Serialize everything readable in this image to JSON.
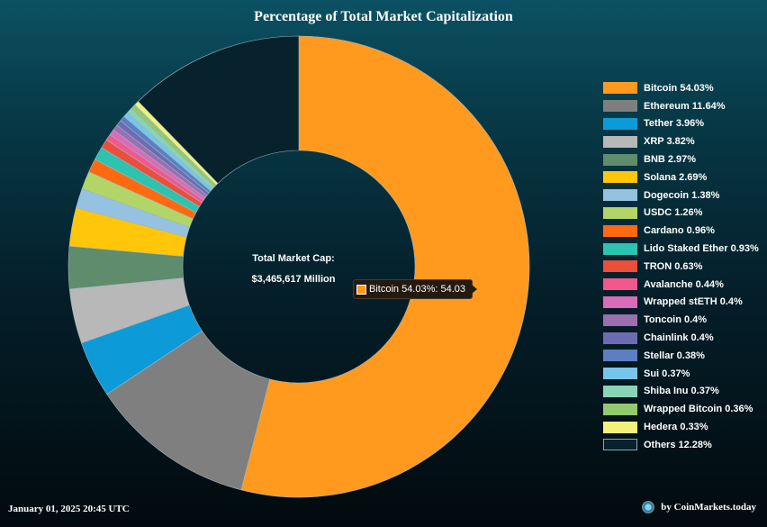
{
  "chart_data": {
    "type": "pie",
    "title": "Percentage of Total Market Capitalization",
    "center_label": {
      "line1": "Total Market Cap:",
      "line2": "$3,465,617 Million"
    },
    "slices": [
      {
        "label": "Bitcoin 54.03%",
        "value": 54.03,
        "color": "#ff9a1f"
      },
      {
        "label": "Ethereum 11.64%",
        "value": 11.64,
        "color": "#7f7f7f"
      },
      {
        "label": "Tether 3.96%",
        "value": 3.96,
        "color": "#0c9bd8"
      },
      {
        "label": "XRP 3.82%",
        "value": 3.82,
        "color": "#b8b8b8"
      },
      {
        "label": "BNB 2.97%",
        "value": 2.97,
        "color": "#5e8c6d"
      },
      {
        "label": "Solana 2.69%",
        "value": 2.69,
        "color": "#ffc60a"
      },
      {
        "label": "Dogecoin 1.38%",
        "value": 1.38,
        "color": "#95c2e0"
      },
      {
        "label": "USDC 1.26%",
        "value": 1.26,
        "color": "#b1d667"
      },
      {
        "label": "Cardano 0.96%",
        "value": 0.96,
        "color": "#ff6a10"
      },
      {
        "label": "Lido Staked Ether 0.93%",
        "value": 0.93,
        "color": "#2cc3b0"
      },
      {
        "label": "TRON 0.63%",
        "value": 0.63,
        "color": "#ea4f3c"
      },
      {
        "label": "Avalanche 0.44%",
        "value": 0.44,
        "color": "#f2588b"
      },
      {
        "label": "Wrapped stETH 0.4%",
        "value": 0.4,
        "color": "#d96cb8"
      },
      {
        "label": "Toncoin 0.4%",
        "value": 0.4,
        "color": "#9a6fb0"
      },
      {
        "label": "Chainlink 0.4%",
        "value": 0.4,
        "color": "#6d6cb3"
      },
      {
        "label": "Stellar 0.38%",
        "value": 0.38,
        "color": "#5b7fc0"
      },
      {
        "label": "Sui 0.37%",
        "value": 0.37,
        "color": "#76c6ea"
      },
      {
        "label": "Shiba Inu 0.37%",
        "value": 0.37,
        "color": "#89d4b6"
      },
      {
        "label": "Wrapped Bitcoin 0.36%",
        "value": 0.36,
        "color": "#93c96f"
      },
      {
        "label": "Hedera 0.33%",
        "value": 0.33,
        "color": "#f4f07a"
      },
      {
        "label": "Others 12.28%",
        "value": 12.28,
        "color": "#07222d"
      }
    ],
    "legend_position": "right",
    "tooltip": {
      "text": "Bitcoin 54.03%: 54.03",
      "color": "#ff9a1f"
    }
  },
  "footer": {
    "timestamp": "January 01, 2025 20:45 UTC",
    "credit": "by CoinMarkets.today"
  }
}
